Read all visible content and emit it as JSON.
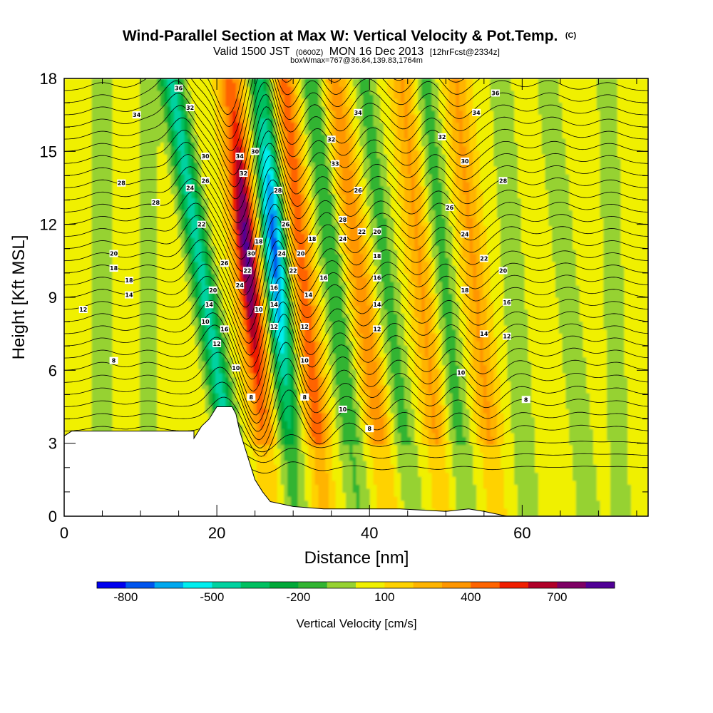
{
  "title": {
    "main": "Wind-Parallel Section at Max W: Vertical Velocity & Pot.Temp.",
    "copyright": "(C)",
    "valid_prefix": "Valid 1500 JST",
    "valid_utc": "(0600Z)",
    "valid_date": "MON 16 Dec 2013",
    "forecast": "[12hrFcst@2334z]",
    "box_info": "boxWmax=767@36.84,139.83,1764m"
  },
  "chart_data": {
    "type": "heatmap",
    "xlabel": "Distance [nm]",
    "ylabel": "Height [Kft MSL]",
    "xlim": [
      0,
      76.5
    ],
    "ylim": [
      0,
      18
    ],
    "x_ticks": [
      0,
      20,
      40,
      60
    ],
    "y_ticks": [
      0,
      3,
      6,
      9,
      12,
      15,
      18
    ],
    "colorbar": {
      "title": "Vertical Velocity [cm/s]",
      "levels": [
        -900,
        -800,
        -700,
        -600,
        -500,
        -400,
        -300,
        -200,
        -100,
        0,
        100,
        200,
        300,
        400,
        500,
        600,
        700,
        800
      ],
      "labels": [
        "-800",
        "-500",
        "-200",
        "100",
        "400",
        "700"
      ],
      "label_values": [
        -800,
        -500,
        -200,
        100,
        400,
        700
      ],
      "colors": [
        "#0000ee",
        "#0055ee",
        "#00a8ee",
        "#00eeee",
        "#00d2a0",
        "#00c060",
        "#00a838",
        "#32b432",
        "#96d232",
        "#f0f000",
        "#ffd200",
        "#ffb400",
        "#ff9600",
        "#ff6400",
        "#f01e00",
        "#b00028",
        "#7e0064",
        "#500096"
      ]
    },
    "terrain_kft": [
      [
        0,
        3.3
      ],
      [
        1,
        3.5
      ],
      [
        17,
        3.5
      ],
      [
        17,
        3.2
      ],
      [
        18,
        3.7
      ],
      [
        19,
        4.0
      ],
      [
        20,
        4.5
      ],
      [
        22,
        4.5
      ],
      [
        22.5,
        4.2
      ],
      [
        23,
        3.5
      ],
      [
        24,
        2.5
      ],
      [
        25,
        1.5
      ],
      [
        26,
        1.0
      ],
      [
        27,
        0.6
      ],
      [
        30,
        0.4
      ],
      [
        34,
        0.3
      ],
      [
        44,
        0.3
      ],
      [
        50,
        0.2
      ],
      [
        53,
        0.3
      ],
      [
        55,
        0.2
      ],
      [
        58,
        0.0
      ],
      [
        60,
        0.0
      ],
      [
        63,
        0.0
      ],
      [
        76.5,
        0.0
      ]
    ],
    "vertical_velocity_features": [
      {
        "center_x": 18.5,
        "tilt_nm_per_kft": -0.5,
        "value": -500
      },
      {
        "center_x": 24.5,
        "tilt_nm_per_kft": -0.3,
        "value": 767
      },
      {
        "center_x": 28.0,
        "tilt_nm_per_kft": -0.25,
        "value": -800
      },
      {
        "center_x": 31.5,
        "tilt_nm_per_kft": -0.3,
        "value": 400
      },
      {
        "center_x": 35.5,
        "tilt_nm_per_kft": -0.35,
        "value": -250
      },
      {
        "center_x": 39.0,
        "tilt_nm_per_kft": -0.4,
        "value": 300
      },
      {
        "center_x": 42.5,
        "tilt_nm_per_kft": -0.35,
        "value": -200
      },
      {
        "center_x": 47.0,
        "tilt_nm_per_kft": -0.3,
        "value": 250
      },
      {
        "center_x": 50.0,
        "tilt_nm_per_kft": -0.3,
        "value": -200
      },
      {
        "center_x": 54.0,
        "tilt_nm_per_kft": -0.3,
        "value": 250
      },
      {
        "center_x": 59.0,
        "tilt_nm_per_kft": -0.2,
        "value": -150
      },
      {
        "center_x": 66.0,
        "tilt_nm_per_kft": -0.3,
        "value": -150
      },
      {
        "center_x": 72.0,
        "tilt_nm_per_kft": -0.1,
        "value": -120
      },
      {
        "center_x": 11.0,
        "tilt_nm_per_kft": 0.0,
        "value": -120
      },
      {
        "center_x": 5.0,
        "tilt_nm_per_kft": 0.0,
        "value": -120
      }
    ],
    "pot_temp_contour_levels": [
      6,
      8,
      10,
      12,
      14,
      16,
      18,
      20,
      22,
      24,
      26,
      28,
      30,
      32,
      34,
      36
    ],
    "contour_labels": [
      {
        "text": "36",
        "x": 15,
        "y": 17.6
      },
      {
        "text": "34",
        "x": 9.5,
        "y": 16.5
      },
      {
        "text": "32",
        "x": 16.5,
        "y": 16.8
      },
      {
        "text": "30",
        "x": 18.5,
        "y": 14.8
      },
      {
        "text": "28",
        "x": 7.5,
        "y": 13.7
      },
      {
        "text": "28",
        "x": 12,
        "y": 12.9
      },
      {
        "text": "26",
        "x": 18.5,
        "y": 13.8
      },
      {
        "text": "24",
        "x": 16.5,
        "y": 13.5
      },
      {
        "text": "22",
        "x": 18,
        "y": 12
      },
      {
        "text": "20",
        "x": 6.5,
        "y": 10.8
      },
      {
        "text": "18",
        "x": 6.5,
        "y": 10.2
      },
      {
        "text": "18",
        "x": 8.5,
        "y": 9.7
      },
      {
        "text": "14",
        "x": 8.5,
        "y": 9.1
      },
      {
        "text": "12",
        "x": 2.5,
        "y": 8.5
      },
      {
        "text": "26",
        "x": 21,
        "y": 10.4
      },
      {
        "text": "20",
        "x": 19.5,
        "y": 9.3
      },
      {
        "text": "14",
        "x": 19,
        "y": 8.7
      },
      {
        "text": "10",
        "x": 18.5,
        "y": 8
      },
      {
        "text": "16",
        "x": 21,
        "y": 7.7
      },
      {
        "text": "12",
        "x": 20,
        "y": 7.1
      },
      {
        "text": "8",
        "x": 6.5,
        "y": 6.4
      },
      {
        "text": "10",
        "x": 22.5,
        "y": 6.1
      },
      {
        "text": "8",
        "x": 24.5,
        "y": 4.9
      },
      {
        "text": "34",
        "x": 23,
        "y": 14.8
      },
      {
        "text": "30",
        "x": 25,
        "y": 15.0
      },
      {
        "text": "32",
        "x": 23.5,
        "y": 14.1
      },
      {
        "text": "30",
        "x": 24.5,
        "y": 10.8
      },
      {
        "text": "22",
        "x": 24,
        "y": 10.1
      },
      {
        "text": "18",
        "x": 25.5,
        "y": 11.3
      },
      {
        "text": "24",
        "x": 23,
        "y": 9.5
      },
      {
        "text": "10",
        "x": 25.5,
        "y": 8.5
      },
      {
        "text": "16",
        "x": 27.5,
        "y": 9.4
      },
      {
        "text": "14",
        "x": 27.5,
        "y": 8.7
      },
      {
        "text": "12",
        "x": 27.5,
        "y": 7.8
      },
      {
        "text": "26",
        "x": 29,
        "y": 12
      },
      {
        "text": "24",
        "x": 28.5,
        "y": 10.8
      },
      {
        "text": "20",
        "x": 31,
        "y": 10.8
      },
      {
        "text": "22",
        "x": 30,
        "y": 10.1
      },
      {
        "text": "18",
        "x": 32.5,
        "y": 11.4
      },
      {
        "text": "14",
        "x": 32,
        "y": 9.1
      },
      {
        "text": "12",
        "x": 31.5,
        "y": 7.8
      },
      {
        "text": "10",
        "x": 31.5,
        "y": 6.4
      },
      {
        "text": "8",
        "x": 31.5,
        "y": 4.9
      },
      {
        "text": "28",
        "x": 28,
        "y": 13.4
      },
      {
        "text": "33",
        "x": 35.5,
        "y": 14.5
      },
      {
        "text": "32",
        "x": 35,
        "y": 15.5
      },
      {
        "text": "34",
        "x": 38.5,
        "y": 16.6
      },
      {
        "text": "26",
        "x": 38.5,
        "y": 13.4
      },
      {
        "text": "28",
        "x": 36.5,
        "y": 12.2
      },
      {
        "text": "24",
        "x": 36.5,
        "y": 11.4
      },
      {
        "text": "22",
        "x": 39,
        "y": 11.7
      },
      {
        "text": "20",
        "x": 41,
        "y": 11.7
      },
      {
        "text": "16",
        "x": 34,
        "y": 9.8
      },
      {
        "text": "18",
        "x": 41,
        "y": 10.7
      },
      {
        "text": "16",
        "x": 41,
        "y": 9.8
      },
      {
        "text": "14",
        "x": 41,
        "y": 8.7
      },
      {
        "text": "12",
        "x": 41,
        "y": 7.7
      },
      {
        "text": "10",
        "x": 36.5,
        "y": 4.4
      },
      {
        "text": "8",
        "x": 40,
        "y": 3.6
      },
      {
        "text": "36",
        "x": 56.5,
        "y": 17.4
      },
      {
        "text": "34",
        "x": 54,
        "y": 16.6
      },
      {
        "text": "32",
        "x": 49.5,
        "y": 15.6
      },
      {
        "text": "30",
        "x": 52.5,
        "y": 14.6
      },
      {
        "text": "28",
        "x": 57.5,
        "y": 13.8
      },
      {
        "text": "26",
        "x": 50.5,
        "y": 12.7
      },
      {
        "text": "24",
        "x": 52.5,
        "y": 11.6
      },
      {
        "text": "22",
        "x": 55,
        "y": 10.6
      },
      {
        "text": "20",
        "x": 57.5,
        "y": 10.1
      },
      {
        "text": "18",
        "x": 52.5,
        "y": 9.3
      },
      {
        "text": "16",
        "x": 58,
        "y": 8.8
      },
      {
        "text": "14",
        "x": 55,
        "y": 7.5
      },
      {
        "text": "12",
        "x": 58,
        "y": 7.4
      },
      {
        "text": "10",
        "x": 52,
        "y": 5.9
      },
      {
        "text": "8",
        "x": 60.5,
        "y": 4.8
      }
    ]
  }
}
